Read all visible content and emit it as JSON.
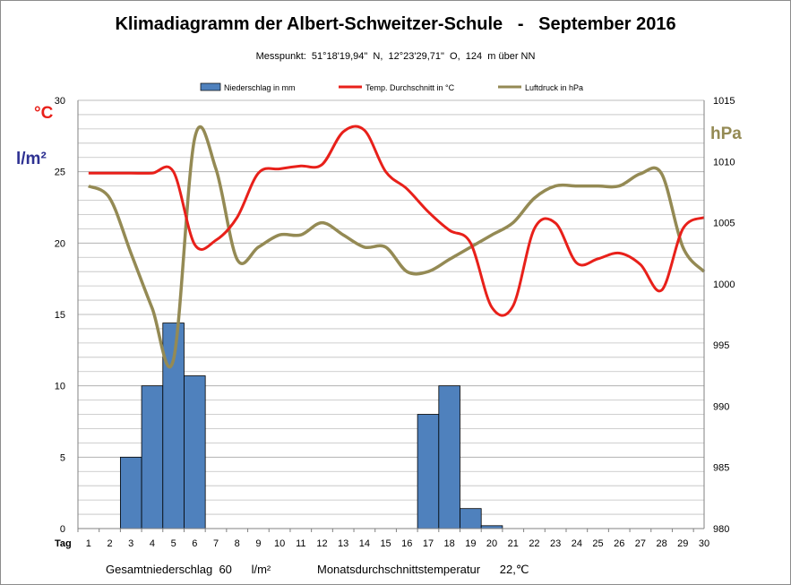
{
  "page": {
    "title": "Klimadiagramm der Albert-Schweitzer-Schule   -   September 2016",
    "subtitle": "Messpunkt:  51°18'19,94\"  N,  12°23'29,71\"  O,  124  m über NN",
    "unit_celsius": "°C",
    "unit_precip": "l/m²",
    "unit_pressure": "hPa",
    "footer_precip": "Gesamtniederschlag  60      l/m²",
    "footer_temp": "Monatsdurchschnittstemperatur      22,℃"
  },
  "colors": {
    "precip_bar": "#4f81bd",
    "temp_line": "#e8201a",
    "pressure_line": "#948a54",
    "celsius_label": "#e8201a",
    "precip_label": "#2e3192",
    "pressure_label": "#948a54",
    "grid": "#bfbfbf"
  },
  "chart_data": {
    "type": "bar+line",
    "x_label": "Tag",
    "x": [
      1,
      2,
      3,
      4,
      5,
      6,
      7,
      8,
      9,
      10,
      11,
      12,
      13,
      14,
      15,
      16,
      17,
      18,
      19,
      20,
      21,
      22,
      23,
      24,
      25,
      26,
      27,
      28,
      29,
      30
    ],
    "left_axis": {
      "ylim": [
        0,
        30
      ],
      "ticks": [
        0,
        5,
        10,
        15,
        20,
        25,
        30
      ]
    },
    "right_axis": {
      "label": "hPa",
      "ylim": [
        980,
        1015
      ],
      "ticks": [
        980,
        985,
        990,
        995,
        1000,
        1005,
        1010,
        1015
      ]
    },
    "grid": true,
    "legend_position": "top",
    "series": [
      {
        "name": "Niederschlag in mm",
        "type": "bar",
        "axis": "left",
        "values": [
          0,
          0,
          5,
          10,
          14.4,
          10.7,
          0,
          0,
          0,
          0,
          0,
          0,
          0,
          0,
          0,
          0,
          8,
          10,
          1.4,
          0.2,
          0,
          0,
          0,
          0,
          0,
          0,
          0,
          0,
          0,
          0
        ]
      },
      {
        "name": "Temp. Durchschnitt in °C",
        "type": "line",
        "axis": "left",
        "values": [
          24.9,
          24.9,
          24.9,
          24.9,
          25,
          19.9,
          20.2,
          21.8,
          24.9,
          25.2,
          25.4,
          25.5,
          27.8,
          27.9,
          25,
          23.8,
          22.2,
          20.9,
          20,
          15.5,
          15.6,
          21,
          21.4,
          18.6,
          18.9,
          19.3,
          18.5,
          16.7,
          21,
          21.8
        ]
      },
      {
        "name": "Luftdruck in hPa",
        "type": "line",
        "axis": "right",
        "values": [
          1008,
          1007,
          1002.5,
          998,
          993.8,
          1011.9,
          1009.4,
          1002,
          1003,
          1004,
          1004,
          1005,
          1004,
          1003,
          1003,
          1001,
          1001,
          1002,
          1003,
          1004,
          1005,
          1007,
          1008,
          1008,
          1008,
          1008,
          1009,
          1009,
          1003,
          1001
        ]
      }
    ]
  }
}
